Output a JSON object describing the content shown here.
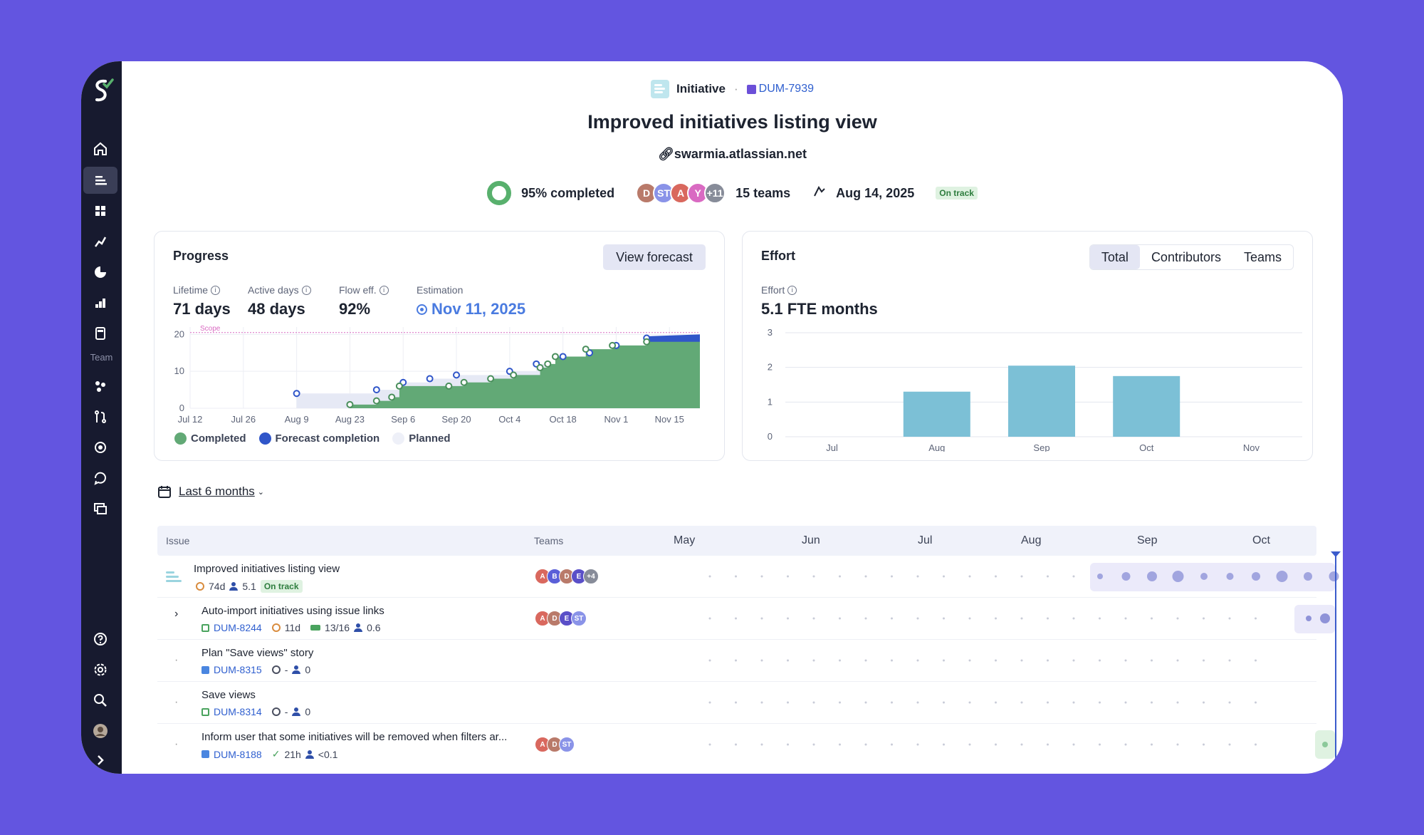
{
  "sidebar": {
    "icons": [
      "home-icon",
      "initiatives-icon",
      "dashboard-icon",
      "metrics-icon",
      "investment-icon",
      "bar-stats-icon",
      "calculator-icon"
    ],
    "team_label": "Team",
    "team_icons": [
      "work-icon",
      "pull-requests-icon",
      "focus-icon",
      "retro-icon",
      "stacked-icon"
    ],
    "bottom_icons": [
      "help-icon",
      "settings-icon",
      "search-icon",
      "avatar-icon",
      "expand-icon"
    ]
  },
  "header": {
    "type_label": "Initiative",
    "issue_key": "DUM-7939",
    "title": "Improved initiatives listing view",
    "site": "swarmia.atlassian.net",
    "completed": "95% completed",
    "teams_avatars": [
      "D",
      "ST",
      "A",
      "Y",
      "+11"
    ],
    "teams_count": "15 teams",
    "target_date": "Aug 14, 2025",
    "status": "On track"
  },
  "progress": {
    "title": "Progress",
    "forecast_button": "View forecast",
    "stats": [
      {
        "label": "Lifetime",
        "value": "71 days",
        "info": true
      },
      {
        "label": "Active days",
        "value": "48 days",
        "info": true
      },
      {
        "label": "Flow eff.",
        "value": "92%",
        "info": true
      },
      {
        "label": "Estimation",
        "value": "Nov 11, 2025",
        "info": false
      }
    ],
    "scope_label": "Scope",
    "legend": [
      "Completed",
      "Forecast completion",
      "Planned"
    ]
  },
  "effort": {
    "title": "Effort",
    "tabs": [
      "Total",
      "Contributors",
      "Teams"
    ],
    "label": "Effort",
    "value": "5.1 FTE months"
  },
  "chart_data": [
    {
      "type": "area",
      "title": "Progress",
      "x_ticks": [
        "Jul 12",
        "Jul 26",
        "Aug 9",
        "Aug 23",
        "Sep 6",
        "Sep 20",
        "Oct 4",
        "Oct 18",
        "Nov 1",
        "Nov 15"
      ],
      "y_ticks": [
        0,
        10,
        20
      ],
      "ylim": [
        0,
        22
      ],
      "series": [
        {
          "name": "Completed",
          "x": [
            "Aug 23",
            "Aug 30",
            "Sep 3",
            "Sep 5",
            "Sep 18",
            "Sep 22",
            "Sep 29",
            "Oct 5",
            "Oct 12",
            "Oct 14",
            "Oct 16",
            "Oct 24",
            "Oct 31",
            "Nov 9",
            "Nov 23"
          ],
          "values": [
            1,
            2,
            3,
            6,
            6,
            7,
            8,
            9,
            11,
            12,
            14,
            16,
            17,
            18,
            18
          ],
          "color": "#62a976"
        },
        {
          "name": "Forecast completion",
          "x": [
            "Nov 9",
            "Nov 23"
          ],
          "values": [
            19,
            19.5
          ],
          "color": "#3056c9"
        },
        {
          "name": "Planned",
          "x": [
            "Aug 9",
            "Aug 30",
            "Sep 6",
            "Sep 13",
            "Sep 20",
            "Oct 4",
            "Oct 11",
            "Oct 18",
            "Oct 25",
            "Nov 1",
            "Nov 9"
          ],
          "values": [
            4,
            5,
            7,
            8,
            9,
            10,
            12,
            14,
            15,
            17,
            19
          ],
          "color": "#e6e9f5"
        }
      ]
    },
    {
      "type": "bar",
      "title": "Effort",
      "categories": [
        "Jul",
        "Aug",
        "Sep",
        "Oct",
        "Nov"
      ],
      "values": [
        0,
        1.3,
        2.05,
        1.75,
        0
      ],
      "y_ticks": [
        0,
        1,
        2,
        3
      ],
      "ylim": [
        0,
        3
      ],
      "color": "#7cc0d6"
    }
  ],
  "filter": {
    "date_range": "Last 6 months"
  },
  "table": {
    "col_issue": "Issue",
    "col_teams": "Teams",
    "months": [
      "May",
      "Jun",
      "Jul",
      "Aug",
      "Sep",
      "Oct"
    ],
    "rows": [
      {
        "title": "Improved initiatives listing view",
        "time": "74d",
        "effort": "5.1",
        "status": "On track",
        "avatars": [
          "A",
          "B",
          "D",
          "E",
          "+4"
        ]
      },
      {
        "title": "Auto-import initiatives using issue links",
        "key": "DUM-8244",
        "time": "11d",
        "progress": "13/16",
        "effort": "0.6",
        "avatars": [
          "A",
          "D",
          "E",
          "ST"
        ]
      },
      {
        "title": "Plan \"Save views\" story",
        "key": "DUM-8315",
        "time": "-",
        "effort": "0",
        "avatars": []
      },
      {
        "title": "Save views",
        "key": "DUM-8314",
        "time": "-",
        "effort": "0",
        "avatars": []
      },
      {
        "title": "Inform user that some initiatives will be removed when filters ar...",
        "key": "DUM-8188",
        "time": "21h",
        "effort": "<0.1",
        "avatars": [
          "A",
          "D",
          "ST"
        ]
      }
    ]
  },
  "colors": {
    "background": "#6355e0",
    "sidebar": "#171a2f",
    "accent": "#3056c9",
    "success": "#58b06d"
  }
}
